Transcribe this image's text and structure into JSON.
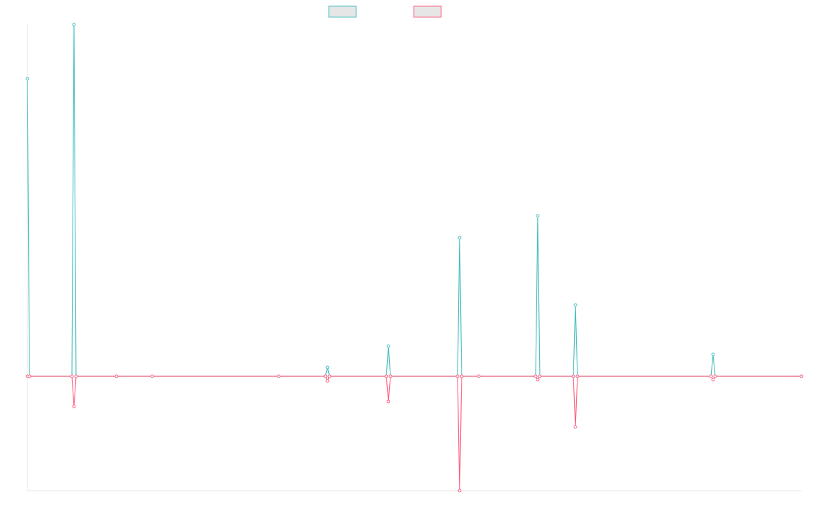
{
  "chart_data": {
    "type": "line",
    "x": [
      0,
      3,
      65,
      68,
      71,
      130,
      182,
      367,
      435,
      438,
      441,
      524,
      527,
      530,
      628,
      631,
      634,
      659,
      742,
      745,
      748,
      797,
      800,
      803,
      998,
      1001,
      1004,
      1130
    ],
    "series": [
      {
        "color": "#4bc0c0",
        "values": [
          434,
          0,
          0,
          513,
          0,
          0,
          0,
          0,
          0,
          13,
          0,
          0,
          44,
          0,
          0,
          202,
          0,
          0,
          0,
          234,
          0,
          0,
          104,
          0,
          0,
          32,
          0,
          0
        ]
      },
      {
        "color": "#ff6384",
        "values": [
          0,
          0,
          0,
          -44,
          0,
          0,
          0,
          0,
          0,
          -7,
          0,
          0,
          -37,
          0,
          0,
          -167,
          0,
          0,
          0,
          -5,
          0,
          0,
          -74,
          0,
          0,
          -5,
          0,
          0
        ]
      }
    ],
    "xlim": [
      0,
      1130
    ],
    "ylim": [
      -167,
      513
    ],
    "legend": "top"
  }
}
